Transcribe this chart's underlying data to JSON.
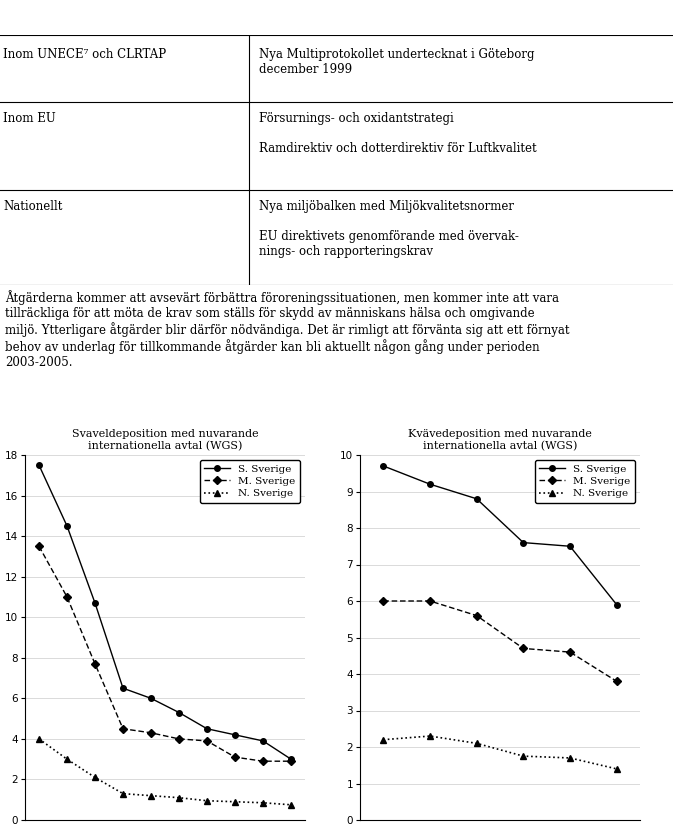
{
  "table": {
    "rows": [
      {
        "col1": "Inom UNECE⁷ och CLRTAP",
        "col2": "Nya Multiprotokollet undertecknat i Göteborg\ndecember 1999"
      },
      {
        "col1": "Inom EU",
        "col2": "Försurnings- och oxidantstrategi\n\nRamdirektiv och dotterdirektiv för Luftkvalitet"
      },
      {
        "col1": "Nationellt",
        "col2": "Nya miljöbalken med Miljökvalitetsnormer\n\nEU direktivets genomförande med övervak-\nnings- och rapporteringskrav"
      }
    ]
  },
  "body_text": "Åtgärderna kommer att avsevärt förbättra föroreningssituationen, men kommer inte att vara\ntillräckliga för att möta de krav som ställs för skydd av människans hälsa och omgivande\nmiljö. Ytterligare åtgärder blir därför nödvändiga. Det är rimligt att förvänta sig att ett förnyat\nbehov av underlag för tillkommande åtgärder kan bli aktuellt någon gång under perioden\n2003-2005.",
  "chart1": {
    "title_line1": "Svaveldeposition med nuvarande",
    "title_line2": "internationella avtal (WGS)",
    "ylim": [
      0,
      18
    ],
    "yticks": [
      0,
      2,
      4,
      6,
      8,
      10,
      12,
      14,
      16,
      18
    ],
    "s_sverige": [
      17.5,
      14.5,
      10.7,
      6.5,
      6.0,
      5.3,
      4.5,
      4.2,
      3.9,
      3.0
    ],
    "m_sverige": [
      13.5,
      11.0,
      7.7,
      4.5,
      4.3,
      4.0,
      3.9,
      3.1,
      2.9,
      2.9
    ],
    "n_sverige": [
      4.0,
      3.0,
      2.1,
      1.3,
      1.2,
      1.1,
      0.95,
      0.9,
      0.85,
      0.75
    ]
  },
  "chart2": {
    "title_line1": "Kvävedeposition med nuvarande",
    "title_line2": "internationella avtal (WGS)",
    "ylim": [
      0,
      10
    ],
    "yticks": [
      0,
      1,
      2,
      3,
      4,
      5,
      6,
      7,
      8,
      9,
      10
    ],
    "s_sverige": [
      9.7,
      9.2,
      8.8,
      7.6,
      7.5,
      5.9
    ],
    "m_sverige": [
      6.0,
      6.0,
      5.6,
      4.7,
      4.6,
      3.8
    ],
    "n_sverige": [
      2.2,
      2.3,
      2.1,
      1.75,
      1.7,
      1.4
    ]
  },
  "legend": {
    "s_sverige_label": "S. Sverige",
    "m_sverige_label": "M. Sverige",
    "n_sverige_label": "N. Sverige"
  }
}
